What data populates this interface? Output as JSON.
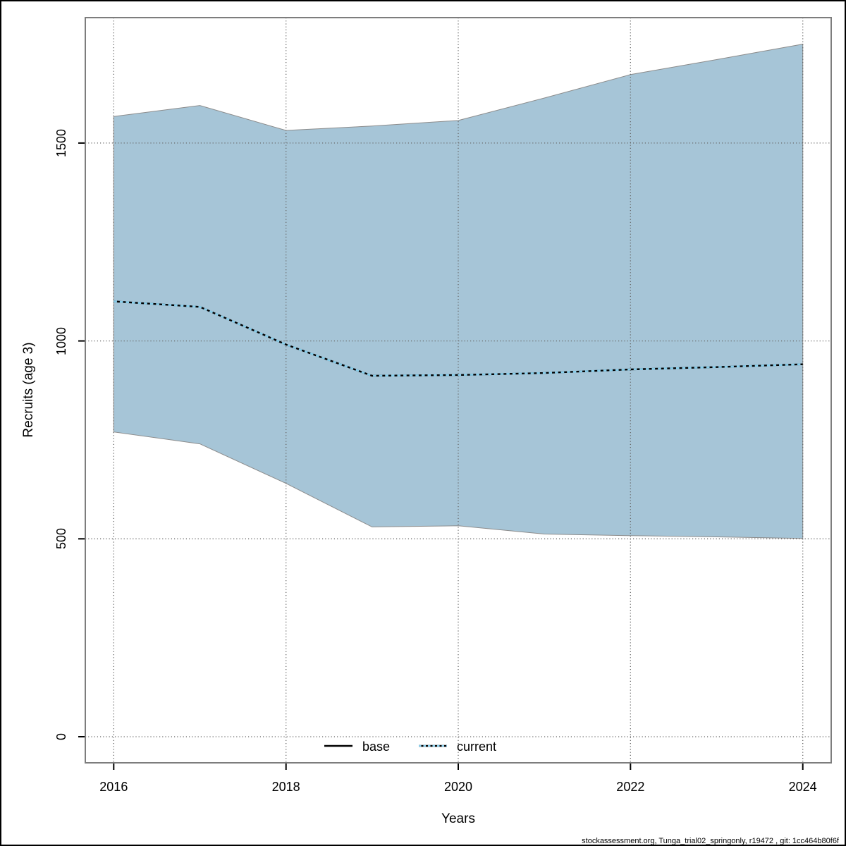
{
  "chart_data": {
    "type": "area",
    "title": "",
    "xlabel": "Years",
    "ylabel": "Recruits (age 3)",
    "x": [
      2016,
      2017,
      2018,
      2019,
      2020,
      2021,
      2022,
      2023,
      2024
    ],
    "x_ticks": [
      2016,
      2018,
      2020,
      2022,
      2024
    ],
    "y_ticks": [
      0,
      500,
      1000,
      1500
    ],
    "xlim": [
      2015.67,
      2024.33
    ],
    "ylim": [
      -66,
      1817
    ],
    "grid": "dotted",
    "grid_color": "#666666",
    "legend_position": "bottom-center-inside",
    "series": [
      {
        "name": "base",
        "style": "solid",
        "color": "#000000",
        "values": [
          1100,
          1086,
          991,
          912,
          914,
          919,
          928,
          934,
          941
        ]
      },
      {
        "name": "current",
        "style": "dashed",
        "color": "#87ceeb",
        "values": [
          1100,
          1086,
          991,
          912,
          914,
          919,
          928,
          934,
          941
        ]
      }
    ],
    "band": {
      "name": "confidence-interval",
      "color": "#a6c5d7",
      "edge_color": "#8c8c8c",
      "upper": [
        1567,
        1595,
        1532,
        1543,
        1557,
        1614,
        1673,
        1711,
        1750
      ],
      "lower": [
        770,
        740,
        640,
        530,
        533,
        512,
        508,
        505,
        501
      ]
    }
  },
  "axes": {
    "x_tick_labels": [
      "2016",
      "2018",
      "2020",
      "2022",
      "2024"
    ],
    "y_tick_labels": [
      "0",
      "500",
      "1000",
      "1500"
    ],
    "box_color": "#7d7d7d",
    "tick_color": "#000000"
  },
  "legend": {
    "items": [
      {
        "label": "base",
        "line_style": "solid",
        "color": "#000000"
      },
      {
        "label": "current",
        "line_style": "dashed",
        "color": "#87ceeb",
        "under_color": "#000000"
      }
    ]
  },
  "footer": {
    "text": "stockassessment.org, Tunga_trial02_springonly, r19472 , git: 1cc464b80f6f"
  }
}
